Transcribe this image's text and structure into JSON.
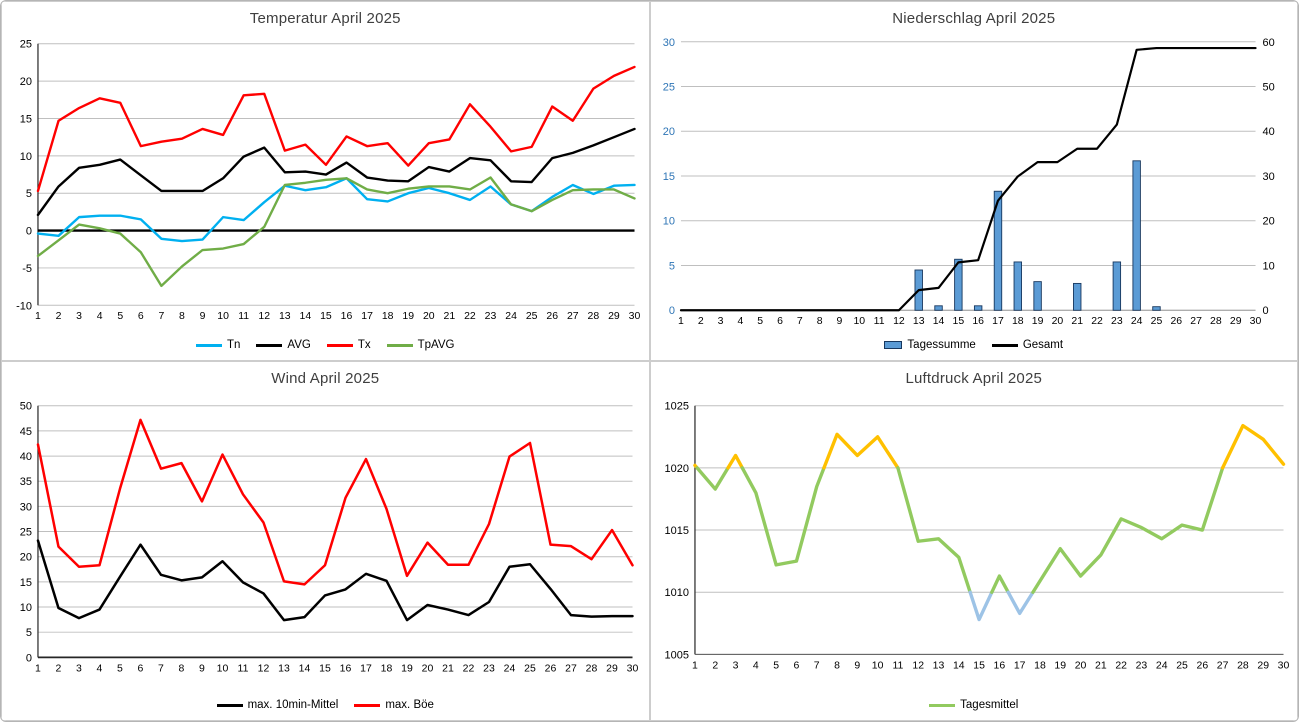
{
  "chart_data": [
    {
      "id": "temperatur",
      "title": "Temperatur April 2025",
      "type": "line",
      "x": [
        1,
        2,
        3,
        4,
        5,
        6,
        7,
        8,
        9,
        10,
        11,
        12,
        13,
        14,
        15,
        16,
        17,
        18,
        19,
        20,
        21,
        22,
        23,
        24,
        25,
        26,
        27,
        28,
        29,
        30
      ],
      "ylim": [
        -10,
        25
      ],
      "yticks": [
        -10,
        -5,
        0,
        5,
        10,
        15,
        20,
        25
      ],
      "emphasize_zero": true,
      "legend_position": "bottom",
      "series": [
        {
          "name": "Tn",
          "type": "line",
          "color": "#00B0F0",
          "values": [
            -0.4,
            -0.7,
            1.8,
            2.0,
            2.0,
            1.5,
            -1.1,
            -1.4,
            -1.2,
            1.8,
            1.4,
            3.8,
            6.0,
            5.4,
            5.8,
            7.0,
            4.2,
            3.9,
            5.0,
            5.7,
            5.0,
            4.1,
            5.9,
            3.5,
            2.6,
            4.5,
            6.1,
            4.9,
            6.0,
            6.1
          ]
        },
        {
          "name": "AVG",
          "type": "line",
          "color": "#000000",
          "values": [
            2.1,
            5.9,
            8.4,
            8.8,
            9.5,
            7.4,
            5.3,
            5.3,
            5.3,
            7.0,
            9.9,
            11.1,
            7.8,
            7.9,
            7.5,
            9.1,
            7.1,
            6.7,
            6.6,
            8.5,
            7.9,
            9.7,
            9.4,
            6.6,
            6.5,
            9.7,
            10.4,
            11.4,
            12.5,
            13.6
          ]
        },
        {
          "name": "Tx",
          "type": "line",
          "color": "#FF0000",
          "values": [
            5.3,
            14.7,
            16.4,
            17.7,
            17.1,
            11.3,
            11.9,
            12.3,
            13.6,
            12.8,
            18.1,
            18.3,
            10.7,
            11.5,
            8.8,
            12.6,
            11.3,
            11.7,
            8.7,
            11.7,
            12.2,
            16.9,
            13.9,
            10.6,
            11.2,
            16.6,
            14.7,
            19.0,
            20.7,
            21.9
          ]
        },
        {
          "name": "TpAVG",
          "type": "line",
          "color": "#70AD47",
          "values": [
            -3.4,
            -1.3,
            0.8,
            0.3,
            -0.4,
            -2.9,
            -7.4,
            -4.8,
            -2.6,
            -2.4,
            -1.8,
            0.5,
            6.1,
            6.4,
            6.8,
            7.0,
            5.5,
            5.0,
            5.6,
            5.9,
            5.9,
            5.5,
            7.1,
            3.5,
            2.6,
            4.1,
            5.4,
            5.5,
            5.5,
            4.3
          ]
        }
      ]
    },
    {
      "id": "niederschlag",
      "title": "Niederschlag April 2025",
      "type": "bar",
      "x": [
        1,
        2,
        3,
        4,
        5,
        6,
        7,
        8,
        9,
        10,
        11,
        12,
        13,
        14,
        15,
        16,
        17,
        18,
        19,
        20,
        21,
        22,
        23,
        24,
        25,
        26,
        27,
        28,
        29,
        30
      ],
      "ylim": [
        0,
        30
      ],
      "yticks": [
        0,
        5,
        10,
        15,
        20,
        25,
        30
      ],
      "ytick_color": "#2E75B6",
      "y2lim": [
        0,
        60
      ],
      "y2ticks": [
        0,
        10,
        20,
        30,
        40,
        50,
        60
      ],
      "legend_position": "bottom",
      "series": [
        {
          "name": "Tagessumme",
          "type": "bar",
          "color": "#5B9BD5",
          "border_color": "#17375E",
          "values": [
            0,
            0,
            0,
            0,
            0,
            0,
            0,
            0,
            0,
            0,
            0,
            0,
            4.5,
            0.5,
            5.7,
            0.5,
            13.3,
            5.4,
            3.2,
            0,
            3.0,
            0,
            5.4,
            16.7,
            0.4,
            0,
            0,
            0,
            0,
            0
          ]
        },
        {
          "name": "Gesamt",
          "type": "line",
          "color": "#000000",
          "axis": "right",
          "values": [
            0,
            0,
            0,
            0,
            0,
            0,
            0,
            0,
            0,
            0,
            0,
            0,
            4.5,
            5.0,
            10.7,
            11.2,
            24.5,
            29.9,
            33.1,
            33.1,
            36.1,
            36.1,
            41.5,
            58.2,
            58.6,
            58.6,
            58.6,
            58.6,
            58.6,
            58.6
          ]
        }
      ]
    },
    {
      "id": "wind",
      "title": "Wind April 2025",
      "type": "line",
      "x": [
        1,
        2,
        3,
        4,
        5,
        6,
        7,
        8,
        9,
        10,
        11,
        12,
        13,
        14,
        15,
        16,
        17,
        18,
        19,
        20,
        21,
        22,
        23,
        24,
        25,
        26,
        27,
        28,
        29,
        30
      ],
      "ylim": [
        0,
        50
      ],
      "yticks": [
        0,
        5,
        10,
        15,
        20,
        25,
        30,
        35,
        40,
        45,
        50
      ],
      "legend_position": "bottom",
      "series": [
        {
          "name": "max. 10min-Mittel",
          "type": "line",
          "color": "#000000",
          "values": [
            23.2,
            9.8,
            7.8,
            9.5,
            16.0,
            22.4,
            16.4,
            15.3,
            15.9,
            19.1,
            14.9,
            12.7,
            7.4,
            8.0,
            12.3,
            13.5,
            16.6,
            15.2,
            7.4,
            10.4,
            9.5,
            8.4,
            11.0,
            18.0,
            18.5,
            13.6,
            8.4,
            8.1,
            8.2,
            8.2
          ]
        },
        {
          "name": "max. Böe",
          "type": "line",
          "color": "#FF0000",
          "values": [
            42.3,
            22.0,
            18.0,
            18.3,
            33.5,
            47.2,
            37.5,
            38.6,
            31.0,
            40.3,
            32.4,
            26.8,
            15.1,
            14.5,
            18.3,
            31.7,
            39.4,
            29.5,
            16.2,
            22.8,
            18.4,
            18.4,
            26.5,
            39.9,
            42.6,
            22.4,
            22.1,
            19.5,
            25.3,
            18.3
          ]
        }
      ]
    },
    {
      "id": "luftdruck",
      "title": "Luftdruck April 2025",
      "type": "line",
      "x": [
        1,
        2,
        3,
        4,
        5,
        6,
        7,
        8,
        9,
        10,
        11,
        12,
        13,
        14,
        15,
        16,
        17,
        18,
        19,
        20,
        21,
        22,
        23,
        24,
        25,
        26,
        27,
        28,
        29,
        30
      ],
      "ylim": [
        1005,
        1025
      ],
      "yticks": [
        1005,
        1010,
        1015,
        1020,
        1025
      ],
      "legend_position": "bottom",
      "series": [
        {
          "name": "Tagesmittel",
          "type": "line",
          "color": "#92CA5F",
          "color_rules": {
            "thresholds": [
              1010,
              1020
            ],
            "colors": [
              "#9DC3E6",
              "#92CA5F",
              "#FFC000"
            ]
          },
          "values": [
            1020.2,
            1018.3,
            1021.0,
            1018.0,
            1012.2,
            1012.5,
            1018.5,
            1022.7,
            1021.0,
            1022.5,
            1020.0,
            1014.1,
            1014.3,
            1012.8,
            1007.8,
            1011.3,
            1008.3,
            1010.9,
            1013.5,
            1011.3,
            1013.0,
            1015.9,
            1015.2,
            1014.3,
            1015.4,
            1015.0,
            1020.0,
            1023.4,
            1022.3,
            1020.3
          ]
        }
      ]
    }
  ]
}
